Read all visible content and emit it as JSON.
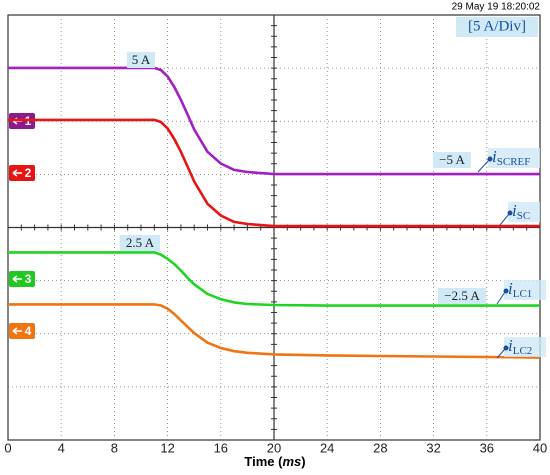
{
  "chart_data": {
    "type": "line",
    "timestamp": "29 May 19  18:20:02",
    "scale_label": "[5 A/Div]",
    "amps_per_div": 5,
    "xlabel": [
      "Time (",
      "ms",
      ")"
    ],
    "xlim": [
      0,
      40
    ],
    "xticks": [
      0,
      4,
      8,
      12,
      16,
      20,
      24,
      28,
      32,
      36,
      40
    ],
    "x": [
      0,
      4,
      8,
      11,
      11.5,
      12,
      12.5,
      13,
      13.5,
      14,
      15,
      16,
      17,
      18,
      20,
      24,
      28,
      32,
      36,
      40
    ],
    "channels": [
      "1",
      "2",
      "3",
      "4"
    ],
    "series": [
      {
        "name": {
          "text": "i",
          "sub": "SCREF"
        },
        "color": "#a21fc4",
        "marker_color": "#8b1a8b",
        "values": [
          5,
          5,
          5,
          5,
          4.8,
          4.2,
          3.2,
          2,
          0.6,
          -0.8,
          -2.9,
          -4,
          -4.6,
          -4.8,
          -5,
          -5,
          -5,
          -5,
          -5,
          -5
        ]
      },
      {
        "name": {
          "text": "i",
          "sub": "SC"
        },
        "color": "#e81414",
        "marker_color": "#e81414",
        "values": [
          5,
          5,
          5,
          5,
          4.8,
          4.2,
          3.2,
          2,
          0.6,
          -0.8,
          -2.9,
          -4,
          -4.6,
          -4.8,
          -5,
          -5,
          -5,
          -5,
          -5,
          -5
        ]
      },
      {
        "name": {
          "text": "i",
          "sub": "LC1"
        },
        "color": "#22d422",
        "marker_color": "#22c822",
        "values": [
          2.5,
          2.5,
          2.5,
          2.5,
          2.3,
          1.9,
          1.4,
          0.8,
          0.1,
          -0.5,
          -1.4,
          -1.9,
          -2.2,
          -2.35,
          -2.45,
          -2.5,
          -2.5,
          -2.5,
          -2.5,
          -2.5
        ]
      },
      {
        "name": {
          "text": "i",
          "sub": "LC2"
        },
        "color": "#f07412",
        "marker_color": "#f07412",
        "values": [
          2.5,
          2.5,
          2.5,
          2.5,
          2.4,
          2.1,
          1.6,
          1.0,
          0.4,
          -0.2,
          -1.1,
          -1.6,
          -1.9,
          -2.05,
          -2.2,
          -2.3,
          -2.35,
          -2.4,
          -2.45,
          -2.5
        ]
      }
    ],
    "annotations": [
      "5 A",
      "−5 A",
      "2.5 A",
      "−2.5 A"
    ]
  }
}
